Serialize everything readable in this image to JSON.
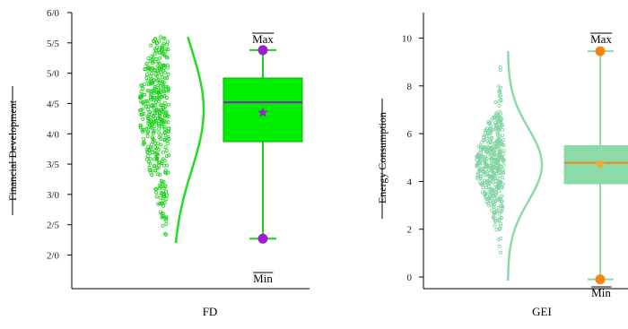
{
  "chart_data": [
    {
      "type": "box",
      "category": "FD",
      "ylabel": "Financial Development",
      "yticks": [
        "2/0",
        "2/5",
        "3/0",
        "3/5",
        "4/0",
        "4/5",
        "5/0",
        "5/5",
        "6/0"
      ],
      "ylim": [
        2.0,
        6.0
      ],
      "box": {
        "min": 2.27,
        "q1": 3.87,
        "median": 4.52,
        "q3": 4.92,
        "max": 5.38,
        "mean": 4.35
      },
      "violin_range": [
        2.2,
        5.6
      ],
      "annotations": {
        "max": "Max",
        "min": "Min"
      },
      "colors": {
        "points": "#1fd21f",
        "box": "#00ee00",
        "whisker": "#22cc22",
        "median": "#8a1fbf",
        "mean": "#9b1fce",
        "extremes": "#9b1fce"
      }
    },
    {
      "type": "box",
      "category": "GEI",
      "ylabel": "Energy Consumption",
      "yticks": [
        "0",
        "2",
        "4",
        "6",
        "8",
        "10"
      ],
      "ylim": [
        -0.5,
        11.0
      ],
      "box": {
        "min": -0.1,
        "q1": 3.9,
        "median": 4.78,
        "q3": 5.5,
        "max": 9.45,
        "mean": 4.72
      },
      "violin_range": [
        -0.15,
        9.45
      ],
      "annotations": {
        "max": "Max",
        "min": "Min"
      },
      "colors": {
        "points": "#7fd4a0",
        "box": "#8ddaa9",
        "whisker": "#8ddaa9",
        "median": "#f08020",
        "mean": "#f5a623",
        "extremes": "#f7840f"
      }
    }
  ]
}
